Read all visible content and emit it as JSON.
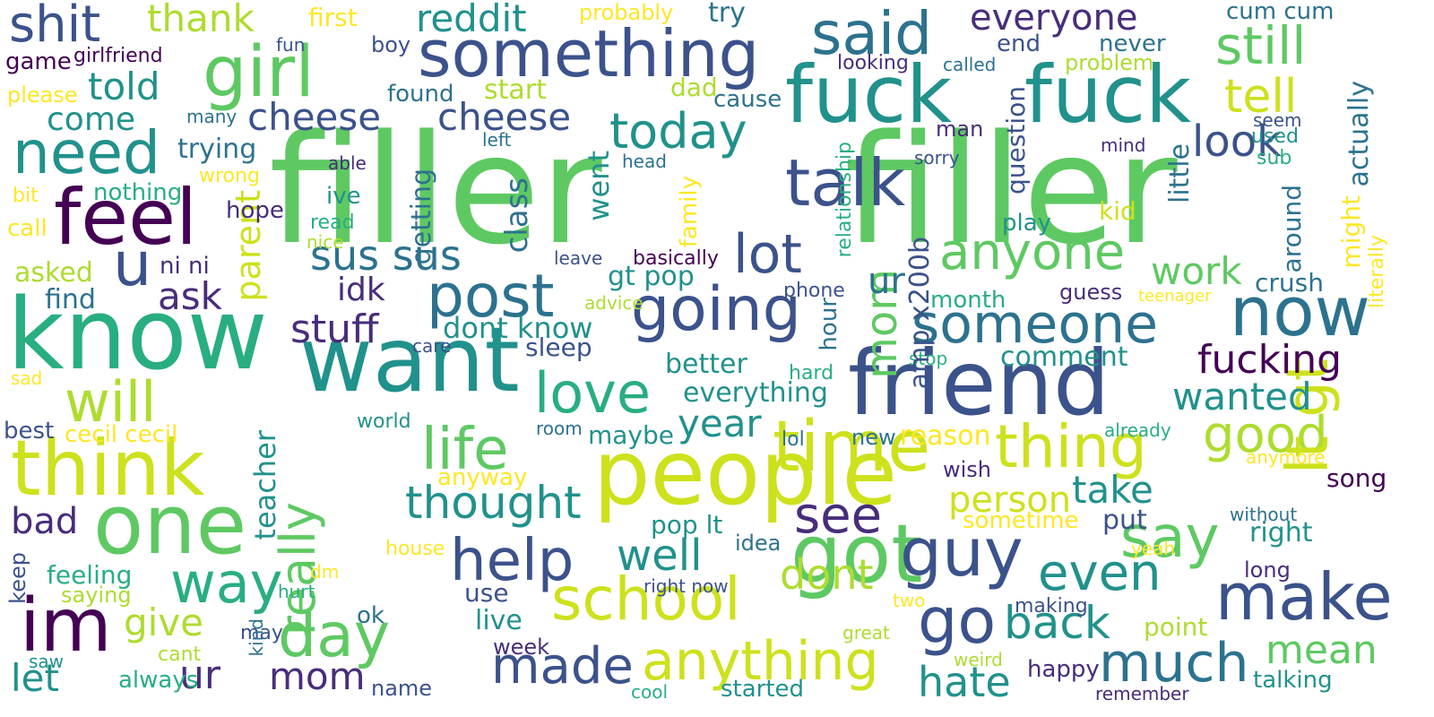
{
  "colors": {
    "background": "#ffffff",
    "palette": [
      "#440154",
      "#472d7b",
      "#3b528b",
      "#2c728e",
      "#21918c",
      "#28ae80",
      "#5ec962",
      "#addc30",
      "#fde725"
    ]
  },
  "words": [
    {
      "text": "filler",
      "color": "#5ec962"
    },
    {
      "text": "filler",
      "color": "#5ec962"
    },
    {
      "text": "fuck",
      "color": "#21918c"
    },
    {
      "text": "fuck",
      "color": "#21918c"
    },
    {
      "text": "know",
      "color": "#28ae80"
    },
    {
      "text": "want",
      "color": "#21918c"
    },
    {
      "text": "people",
      "color": "#cde11d"
    },
    {
      "text": "friend",
      "color": "#3b528b"
    },
    {
      "text": "something",
      "color": "#3b528b"
    },
    {
      "text": "girl",
      "color": "#5ec962"
    },
    {
      "text": "think",
      "color": "#cde11d"
    },
    {
      "text": "one",
      "color": "#5ec962"
    },
    {
      "text": "feel",
      "color": "#440154"
    },
    {
      "text": "need",
      "color": "#21918c"
    },
    {
      "text": "im",
      "color": "#440154"
    },
    {
      "text": "time",
      "color": "#cde11d"
    },
    {
      "text": "got",
      "color": "#5ec962"
    },
    {
      "text": "school",
      "color": "#cde11d"
    },
    {
      "text": "make",
      "color": "#3b528b"
    },
    {
      "text": "guy",
      "color": "#3b528b"
    },
    {
      "text": "now",
      "color": "#2c728e"
    },
    {
      "text": "said",
      "color": "#2c728e"
    },
    {
      "text": "talk",
      "color": "#3b528b"
    },
    {
      "text": "lot",
      "color": "#3b528b"
    },
    {
      "text": "someone",
      "color": "#2c728e"
    },
    {
      "text": "going",
      "color": "#3b528b"
    },
    {
      "text": "post",
      "color": "#2c728e"
    },
    {
      "text": "love",
      "color": "#28ae80"
    },
    {
      "text": "life",
      "color": "#5ec962"
    },
    {
      "text": "help",
      "color": "#3b528b"
    },
    {
      "text": "anything",
      "color": "#cde11d"
    },
    {
      "text": "day",
      "color": "#5ec962"
    },
    {
      "text": "much",
      "color": "#2c728e"
    },
    {
      "text": "thing",
      "color": "#cde11d"
    },
    {
      "text": "say",
      "color": "#5ec962"
    },
    {
      "text": "go",
      "color": "#3b528b"
    },
    {
      "text": "even",
      "color": "#21918c"
    },
    {
      "text": "anyone",
      "color": "#5ec962"
    },
    {
      "text": "see",
      "color": "#472d7b"
    },
    {
      "text": "will",
      "color": "#addc30"
    },
    {
      "text": "u",
      "color": "#3b528b"
    },
    {
      "text": "still",
      "color": "#5ec962"
    },
    {
      "text": "tell",
      "color": "#cde11d"
    },
    {
      "text": "everyone",
      "color": "#472d7b"
    },
    {
      "text": "shit",
      "color": "#3b528b"
    },
    {
      "text": "thank",
      "color": "#addc30"
    },
    {
      "text": "reddit",
      "color": "#21918c"
    },
    {
      "text": "cheese",
      "color": "#3b528b"
    },
    {
      "text": "cheese",
      "color": "#3b528b"
    },
    {
      "text": "today",
      "color": "#21918c"
    },
    {
      "text": "told",
      "color": "#21918c"
    },
    {
      "text": "come",
      "color": "#21918c"
    },
    {
      "text": "good",
      "color": "#addc30"
    },
    {
      "text": "lt gt",
      "color": "#cde11d"
    },
    {
      "text": "way",
      "color": "#28ae80"
    },
    {
      "text": "made",
      "color": "#3b528b"
    },
    {
      "text": "back",
      "color": "#21918c"
    },
    {
      "text": "mean",
      "color": "#5ec962"
    },
    {
      "text": "hate",
      "color": "#21918c"
    },
    {
      "text": "fucking",
      "color": "#440154"
    },
    {
      "text": "wanted",
      "color": "#21918c"
    },
    {
      "text": "work",
      "color": "#5ec962"
    },
    {
      "text": "look",
      "color": "#3b528b"
    },
    {
      "text": "mom",
      "color": "#5ec962"
    },
    {
      "text": "really",
      "color": "#5ec962"
    },
    {
      "text": "thought",
      "color": "#21918c"
    },
    {
      "text": "well",
      "color": "#21918c"
    },
    {
      "text": "dont",
      "color": "#addc30"
    },
    {
      "text": "take",
      "color": "#21918c"
    },
    {
      "text": "person",
      "color": "#cde11d"
    },
    {
      "text": "year",
      "color": "#21918c"
    },
    {
      "text": "sus sus",
      "color": "#2c728e"
    },
    {
      "text": "stuff",
      "color": "#472d7b"
    },
    {
      "text": "idk",
      "color": "#472d7b"
    },
    {
      "text": "ask",
      "color": "#472d7b"
    },
    {
      "text": "parent",
      "color": "#cde11d"
    },
    {
      "text": "give",
      "color": "#addc30"
    },
    {
      "text": "ur",
      "color": "#472d7b"
    },
    {
      "text": "bad",
      "color": "#472d7b"
    },
    {
      "text": "let",
      "color": "#21918c"
    },
    {
      "text": "mom",
      "color": "#472d7b"
    },
    {
      "text": "ur",
      "color": "#2c728e"
    },
    {
      "text": "ur",
      "color": "#472d7b"
    }
  ],
  "small_words": [
    {
      "text": "first",
      "color": "#fde725"
    },
    {
      "text": "probably",
      "color": "#fde725"
    },
    {
      "text": "try",
      "color": "#2c728e"
    },
    {
      "text": "boy",
      "color": "#3b528b"
    },
    {
      "text": "fun",
      "color": "#3b528b"
    },
    {
      "text": "game",
      "color": "#440154"
    },
    {
      "text": "girlfriend",
      "color": "#440154"
    },
    {
      "text": "please",
      "color": "#fde725"
    },
    {
      "text": "found",
      "color": "#2c728e"
    },
    {
      "text": "start",
      "color": "#addc30"
    },
    {
      "text": "dad",
      "color": "#addc30"
    },
    {
      "text": "cause",
      "color": "#2c728e"
    },
    {
      "text": "trying",
      "color": "#2c728e"
    },
    {
      "text": "many",
      "color": "#2c728e"
    },
    {
      "text": "left",
      "color": "#2c728e"
    },
    {
      "text": "wrong",
      "color": "#fde725"
    },
    {
      "text": "able",
      "color": "#472d7b"
    },
    {
      "text": "head",
      "color": "#2c728e"
    },
    {
      "text": "nothing",
      "color": "#28ae80"
    },
    {
      "text": "bit",
      "color": "#fde725"
    },
    {
      "text": "hope",
      "color": "#472d7b"
    },
    {
      "text": "ive",
      "color": "#21918c"
    },
    {
      "text": "read",
      "color": "#28ae80"
    },
    {
      "text": "nice",
      "color": "#addc30"
    },
    {
      "text": "call",
      "color": "#fde725"
    },
    {
      "text": "ni ni",
      "color": "#472d7b"
    },
    {
      "text": "leave",
      "color": "#3b528b"
    },
    {
      "text": "basically",
      "color": "#440154"
    },
    {
      "text": "gt pop",
      "color": "#21918c"
    },
    {
      "text": "asked",
      "color": "#addc30"
    },
    {
      "text": "find",
      "color": "#2c728e"
    },
    {
      "text": "advice",
      "color": "#addc30"
    },
    {
      "text": "care",
      "color": "#3b528b"
    },
    {
      "text": "dont know",
      "color": "#21918c"
    },
    {
      "text": "sleep",
      "color": "#3b528b"
    },
    {
      "text": "better",
      "color": "#21918c"
    },
    {
      "text": "everything",
      "color": "#21918c"
    },
    {
      "text": "sad",
      "color": "#fde725"
    },
    {
      "text": "best",
      "color": "#3b528b"
    },
    {
      "text": "cecil cecil",
      "color": "#fde725"
    },
    {
      "text": "world",
      "color": "#21918c"
    },
    {
      "text": "room",
      "color": "#2c728e"
    },
    {
      "text": "maybe",
      "color": "#21918c"
    },
    {
      "text": "anyway",
      "color": "#fde725"
    },
    {
      "text": "house",
      "color": "#fde725"
    },
    {
      "text": "pop lt",
      "color": "#21918c"
    },
    {
      "text": "feeling",
      "color": "#28ae80"
    },
    {
      "text": "saying",
      "color": "#addc30"
    },
    {
      "text": "dm",
      "color": "#fde725"
    },
    {
      "text": "hurt",
      "color": "#28ae80"
    },
    {
      "text": "cant",
      "color": "#addc30"
    },
    {
      "text": "always",
      "color": "#28ae80"
    },
    {
      "text": "saw",
      "color": "#21918c"
    },
    {
      "text": "may",
      "color": "#3b528b"
    },
    {
      "text": "name",
      "color": "#3b528b"
    },
    {
      "text": "use",
      "color": "#3b528b"
    },
    {
      "text": "ok",
      "color": "#2c728e"
    },
    {
      "text": "live",
      "color": "#21918c"
    },
    {
      "text": "week",
      "color": "#472d7b"
    },
    {
      "text": "cum cum",
      "color": "#2c728e"
    },
    {
      "text": "never",
      "color": "#2c728e"
    },
    {
      "text": "end",
      "color": "#3b528b"
    },
    {
      "text": "called",
      "color": "#2c728e"
    },
    {
      "text": "looking",
      "color": "#472d7b"
    },
    {
      "text": "problem",
      "color": "#addc30"
    },
    {
      "text": "seem",
      "color": "#3b528b"
    },
    {
      "text": "used",
      "color": "#21918c"
    },
    {
      "text": "sub",
      "color": "#28ae80"
    },
    {
      "text": "actually",
      "color": "#2c728e"
    },
    {
      "text": "man",
      "color": "#472d7b"
    },
    {
      "text": "sorry",
      "color": "#3b528b"
    },
    {
      "text": "mind",
      "color": "#472d7b"
    },
    {
      "text": "kid",
      "color": "#cde11d"
    },
    {
      "text": "play",
      "color": "#21918c"
    },
    {
      "text": "guess",
      "color": "#472d7b"
    },
    {
      "text": "teenager",
      "color": "#fde725"
    },
    {
      "text": "month",
      "color": "#28ae80"
    },
    {
      "text": "phone",
      "color": "#3b528b"
    },
    {
      "text": "crush",
      "color": "#2c728e"
    },
    {
      "text": "comment",
      "color": "#21918c"
    },
    {
      "text": "stop",
      "color": "#28ae80"
    },
    {
      "text": "hard",
      "color": "#28ae80"
    },
    {
      "text": "new",
      "color": "#2c728e"
    },
    {
      "text": "lol",
      "color": "#2c728e"
    },
    {
      "text": "reason",
      "color": "#fde725"
    },
    {
      "text": "already",
      "color": "#28ae80"
    },
    {
      "text": "anymore",
      "color": "#fde725"
    },
    {
      "text": "wish",
      "color": "#472d7b"
    },
    {
      "text": "song",
      "color": "#440154"
    },
    {
      "text": "sometime",
      "color": "#fde725"
    },
    {
      "text": "without",
      "color": "#2c728e"
    },
    {
      "text": "put",
      "color": "#3b528b"
    },
    {
      "text": "idea",
      "color": "#2c728e"
    },
    {
      "text": "right",
      "color": "#21918c"
    },
    {
      "text": "yeah",
      "color": "#fde725"
    },
    {
      "text": "long",
      "color": "#472d7b"
    },
    {
      "text": "right now",
      "color": "#3b528b"
    },
    {
      "text": "making",
      "color": "#3b528b"
    },
    {
      "text": "point",
      "color": "#addc30"
    },
    {
      "text": "great",
      "color": "#addc30"
    },
    {
      "text": "two",
      "color": "#fde725"
    },
    {
      "text": "weird",
      "color": "#addc30"
    },
    {
      "text": "happy",
      "color": "#472d7b"
    },
    {
      "text": "cool",
      "color": "#28ae80"
    },
    {
      "text": "started",
      "color": "#21918c"
    },
    {
      "text": "remember",
      "color": "#472d7b"
    },
    {
      "text": "talking",
      "color": "#21918c"
    },
    {
      "text": "keep",
      "color": "#3b528b"
    }
  ],
  "vertical_words": [
    {
      "text": "class",
      "color": "#2c728e"
    },
    {
      "text": "getting",
      "color": "#2c728e"
    },
    {
      "text": "went",
      "color": "#21918c"
    },
    {
      "text": "teacher",
      "color": "#21918c"
    },
    {
      "text": "relationship",
      "color": "#28ae80"
    },
    {
      "text": "family",
      "color": "#fde725"
    },
    {
      "text": "hour",
      "color": "#2c728e"
    },
    {
      "text": "amp x200b",
      "color": "#3b528b"
    },
    {
      "text": "question",
      "color": "#3b528b"
    },
    {
      "text": "little",
      "color": "#2c728e"
    },
    {
      "text": "around",
      "color": "#2c728e"
    },
    {
      "text": "might",
      "color": "#fde725"
    },
    {
      "text": "literally",
      "color": "#fde725"
    },
    {
      "text": "kind",
      "color": "#2c728e"
    }
  ]
}
